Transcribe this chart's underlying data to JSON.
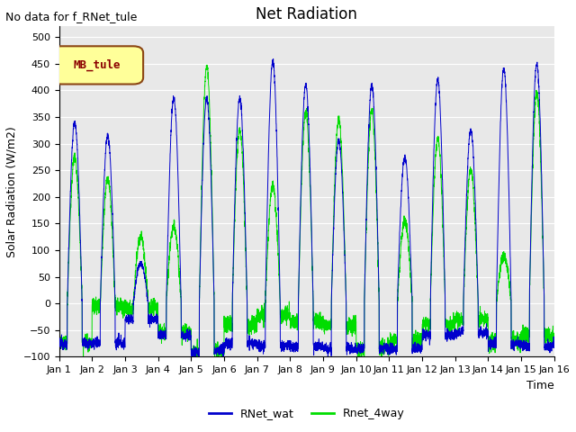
{
  "title": "Net Radiation",
  "xlabel": "Time",
  "ylabel": "Solar Radiation (W/m2)",
  "no_data_text": "No data for f_RNet_tule",
  "legend_label": "MB_tule",
  "ylim": [
    -100,
    520
  ],
  "yticks": [
    -100,
    -50,
    0,
    50,
    100,
    150,
    200,
    250,
    300,
    350,
    400,
    450,
    500
  ],
  "xtick_labels": [
    "Jan 1",
    "Jan 2",
    "Jan 3",
    "Jan 4",
    "Jan 5",
    "Jan 6",
    "Jan 7",
    "Jan 8",
    "Jan 9",
    "Jan 10",
    "Jan 11",
    "Jan 12",
    "Jan 13",
    "Jan 14",
    "Jan 15",
    "Jan 16"
  ],
  "color_blue": "#0000cc",
  "color_green": "#00dd00",
  "background_color": "#e8e8e8",
  "title_fontsize": 12,
  "axis_label_fontsize": 9,
  "tick_fontsize": 8,
  "legend_item_fontsize": 9,
  "no_data_fontsize": 9,
  "days": 15,
  "points_per_day": 288,
  "figsize": [
    6.4,
    4.8
  ],
  "dpi": 100
}
